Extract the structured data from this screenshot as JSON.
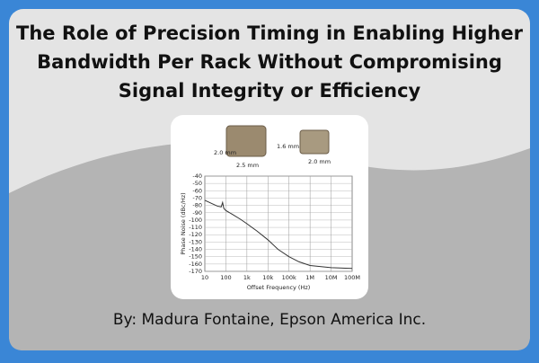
{
  "title_lines": [
    "The Role of Precision Timing in Enabling Higher",
    "Bandwidth Per Rack Without Compromising",
    "Signal Integrity or Efficiency"
  ],
  "byline": "By: Madura Fontaine, Epson America Inc.",
  "package_labels": [
    "2.0 mm",
    "2.5 mm",
    "1.6 mm",
    "2.0 mm"
  ],
  "chart_data": {
    "type": "line",
    "x_label": "Offset Frequency (Hz)",
    "y_label": "Phase Noise (dBc/Hz)",
    "x": [
      10,
      20,
      40,
      60,
      70,
      80,
      100,
      200,
      500,
      1000,
      3000,
      10000,
      30000,
      100000,
      300000,
      1000000,
      10000000,
      100000000
    ],
    "series": [
      {
        "name": "Phase Noise",
        "color": "#333333",
        "values": [
          -73,
          -77,
          -81,
          -82,
          -76,
          -84,
          -87,
          -92,
          -99,
          -105,
          -115,
          -127,
          -140,
          -150,
          -157,
          -162,
          -165,
          -166
        ]
      }
    ],
    "xlim": [
      10,
      100000000
    ],
    "ylim": [
      -170,
      -40
    ],
    "log_x": true,
    "grid": true,
    "xticks": [
      {
        "value": 10,
        "label": "10"
      },
      {
        "value": 100,
        "label": "100"
      },
      {
        "value": 1000,
        "label": "1k"
      },
      {
        "value": 10000,
        "label": "10k"
      },
      {
        "value": 100000,
        "label": "100k"
      },
      {
        "value": 1000000,
        "label": "1M"
      },
      {
        "value": 10000000,
        "label": "10M"
      },
      {
        "value": 100000000,
        "label": "100M"
      }
    ],
    "yticks": [
      -40,
      -50,
      -60,
      -70,
      -80,
      -90,
      -100,
      -110,
      -120,
      -130,
      -140,
      -150,
      -160,
      -170
    ]
  }
}
